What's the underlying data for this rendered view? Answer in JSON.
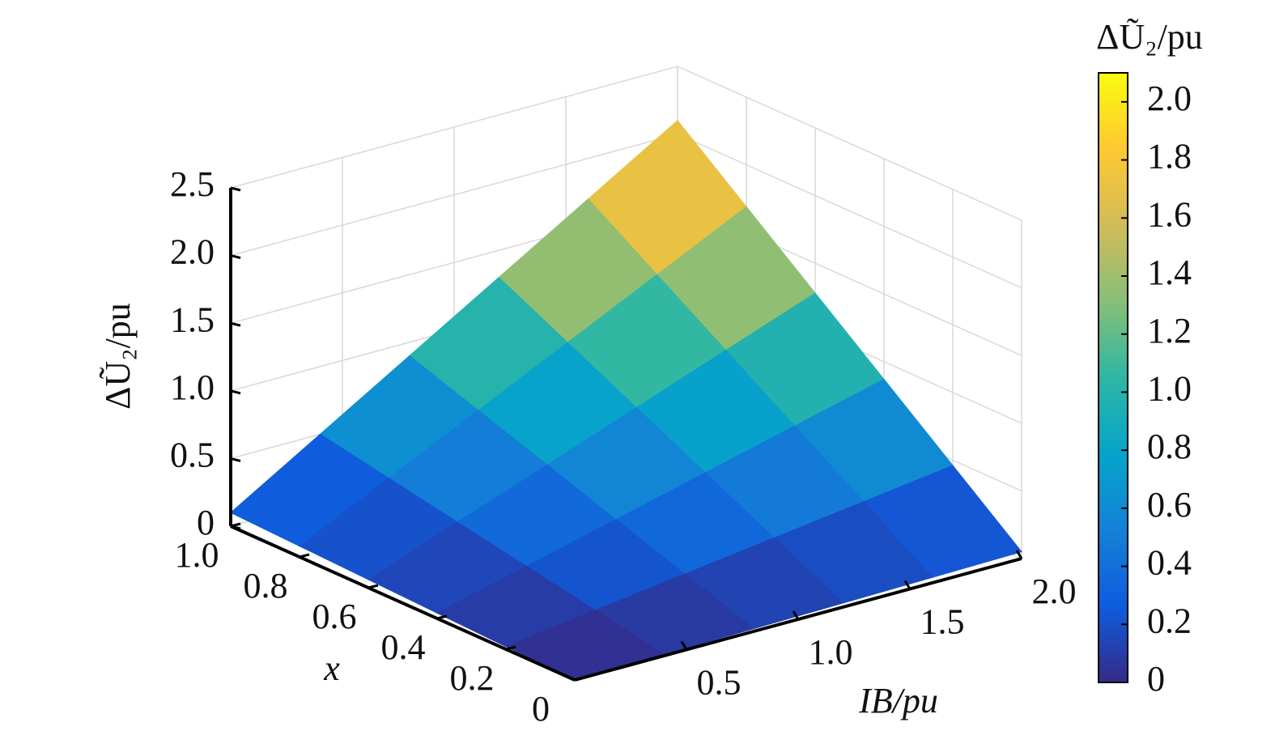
{
  "chart_data": {
    "type": "surface",
    "zlabel": "ΔŨ₂/pu",
    "xlabel": "IB/pu",
    "ylabel": "x",
    "colorbar_label": "ΔŨ₂/pu",
    "x": [
      0,
      0.4,
      0.8,
      1.2,
      1.6,
      2.0
    ],
    "y": [
      0,
      0.2,
      0.4,
      0.6,
      0.8,
      1.0
    ],
    "z": [
      [
        0,
        0.01,
        0.02,
        0.03,
        0.04,
        0.05
      ],
      [
        0.02,
        0.108,
        0.196,
        0.284,
        0.372,
        0.46
      ],
      [
        0.04,
        0.206,
        0.372,
        0.538,
        0.704,
        0.87
      ],
      [
        0.06,
        0.304,
        0.548,
        0.792,
        1.036,
        1.28
      ],
      [
        0.08,
        0.402,
        0.724,
        1.046,
        1.368,
        1.69
      ],
      [
        0.1,
        0.5,
        0.9,
        1.3,
        1.7,
        2.1
      ]
    ],
    "xlim": [
      0,
      2
    ],
    "xticks": [
      0.5,
      {
        "value": 1,
        "label": "1.0"
      },
      1.5,
      {
        "value": 2,
        "label": "2.0"
      }
    ],
    "ylim": [
      0,
      1
    ],
    "yticks": [
      0,
      0.2,
      0.4,
      0.6,
      0.8,
      {
        "value": 1,
        "label": "1.0"
      }
    ],
    "zlim": [
      0,
      2.5
    ],
    "zticks": [
      0,
      0.5,
      {
        "value": 1,
        "label": "1.0"
      },
      1.5,
      {
        "value": 2,
        "label": "2.0"
      },
      2.5
    ],
    "clim": [
      0,
      2.1
    ],
    "cticks": [
      0,
      0.2,
      0.4,
      0.6,
      0.8,
      {
        "value": 1,
        "label": "1.0"
      },
      1.2,
      1.4,
      1.6,
      1.8,
      {
        "value": 2,
        "label": "2.0"
      }
    ],
    "colormap": "parula",
    "grid": true
  }
}
